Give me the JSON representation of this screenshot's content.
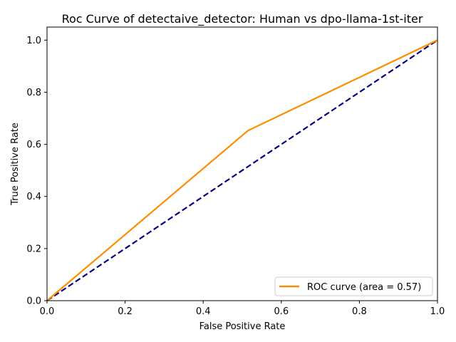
{
  "chart_data": {
    "type": "line",
    "title": "Roc Curve of detectaive_detector: Human vs dpo-llama-1st-iter",
    "xlabel": "False Positive Rate",
    "ylabel": "True Positive Rate",
    "xlim": [
      0.0,
      1.0
    ],
    "ylim": [
      0.0,
      1.05
    ],
    "x_ticks": [
      0.0,
      0.2,
      0.4,
      0.6,
      0.8,
      1.0
    ],
    "x_tick_labels": [
      "0.0",
      "0.2",
      "0.4",
      "0.6",
      "0.8",
      "1.0"
    ],
    "y_ticks": [
      0.0,
      0.2,
      0.4,
      0.6,
      0.8,
      1.0
    ],
    "y_tick_labels": [
      "0.0",
      "0.2",
      "0.4",
      "0.6",
      "0.8",
      "1.0"
    ],
    "grid": false,
    "legend_position": "lower-right",
    "series": [
      {
        "name": "ROC curve (area = 0.57)",
        "color": "#ff8c00",
        "style": "solid",
        "x": [
          0.0,
          0.515,
          1.0
        ],
        "y": [
          0.0,
          0.653,
          1.0
        ]
      },
      {
        "color": "#000080",
        "style": "dashed",
        "x": [
          0.0,
          1.0
        ],
        "y": [
          0.0,
          1.0
        ]
      }
    ]
  }
}
